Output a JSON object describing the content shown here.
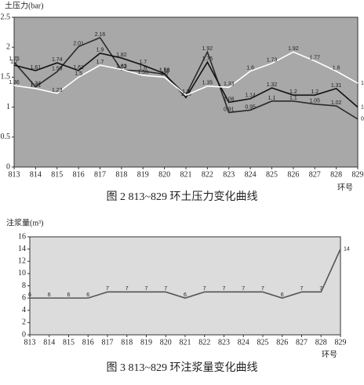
{
  "chart_data": [
    {
      "type": "line",
      "title": "土压力(bar)",
      "x_label": "环号",
      "caption": "图 2  813~829 环土压力变化曲线",
      "categories": [
        "813",
        "814",
        "815",
        "816",
        "817",
        "818",
        "819",
        "820",
        "821",
        "822",
        "823",
        "824",
        "825",
        "826",
        "827",
        "828",
        "829"
      ],
      "series": [
        {
          "color": "#2b2b2b",
          "values": [
            1.75,
            1.34,
            1.59,
            2.01,
            2.16,
            1.62,
            1.6,
            1.55,
            1.2,
            1.92,
            0.91,
            0.95,
            1.1,
            1.1,
            1.05,
            1.02,
            0.8
          ]
        },
        {
          "color": "#111111",
          "values": [
            1.7,
            1.61,
            1.74,
            1.61,
            1.9,
            1.82,
            1.7,
            1.56,
            1.16,
            1.75,
            1.08,
            1.14,
            1.32,
            1.2,
            1.2,
            1.31,
            1.0
          ]
        },
        {
          "color": "#ffffff",
          "values": [
            1.36,
            1.31,
            1.23,
            1.5,
            1.7,
            1.63,
            1.53,
            1.5,
            1.2,
            1.35,
            1.33,
            1.6,
            1.73,
            1.92,
            1.77,
            1.6,
            1.4
          ]
        }
      ],
      "ylim": [
        0,
        2.5
      ],
      "yticks": [
        0,
        0.5,
        1,
        1.5,
        2,
        2.5
      ],
      "background": "#a8a8a8"
    },
    {
      "type": "line",
      "title": "注浆量(m³)",
      "x_label": "环号",
      "caption": "图 3  813~829 环注浆量变化曲线",
      "categories": [
        "813",
        "814",
        "815",
        "816",
        "817",
        "818",
        "819",
        "820",
        "821",
        "822",
        "823",
        "824",
        "825",
        "826",
        "827",
        "828",
        "829"
      ],
      "series": [
        {
          "color": "#555555",
          "values": [
            6,
            6,
            6,
            6,
            7,
            7,
            7,
            7,
            6,
            7,
            7,
            7,
            7,
            6,
            7,
            7,
            14
          ]
        }
      ],
      "ylim": [
        0,
        16
      ],
      "yticks": [
        0,
        2,
        4,
        6,
        8,
        10,
        12,
        14,
        16
      ],
      "background": "#dcdcdc"
    }
  ]
}
